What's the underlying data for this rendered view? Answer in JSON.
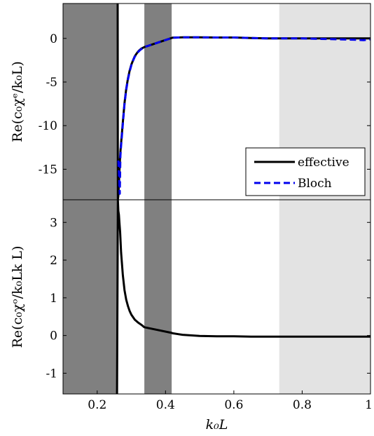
{
  "chart_data": [
    {
      "type": "line",
      "ylabel": "Re(c₀χᵉ/k₀L)",
      "xlim": [
        0.1,
        1.0
      ],
      "ylim": [
        -18.5,
        4
      ],
      "yticks": [
        0,
        -5,
        -10,
        -15
      ],
      "bands": [
        {
          "x0": 0.1,
          "x1": 0.26,
          "color": "#808080"
        },
        {
          "x0": 0.338,
          "x1": 0.418,
          "color": "#808080"
        },
        {
          "x0": 0.733,
          "x1": 1.0,
          "color": "#e3e3e3"
        }
      ],
      "legend": {
        "position": "bottom-right",
        "entries": [
          "effective",
          "Bloch"
        ]
      },
      "series": [
        {
          "name": "effective",
          "color": "#000000",
          "dash": "none",
          "x": [
            0.26,
            0.2605,
            0.262,
            0.264,
            0.266,
            0.268,
            0.27,
            0.275,
            0.28,
            0.285,
            0.29,
            0.295,
            0.3,
            0.305,
            0.31,
            0.315,
            0.32,
            0.325,
            0.33,
            0.338,
            0.418,
            0.42,
            0.45,
            0.5,
            0.55,
            0.6,
            0.65,
            0.7,
            0.75,
            0.8,
            0.85,
            0.9,
            0.95,
            1.0
          ],
          "y": [
            4,
            -18.5,
            -18,
            -16.2,
            -14.3,
            -13,
            -12,
            -9.6,
            -7.4,
            -5.8,
            -4.6,
            -3.7,
            -3.0,
            -2.5,
            -2.05,
            -1.75,
            -1.5,
            -1.3,
            -1.15,
            -1.0,
            0.05,
            0.08,
            0.12,
            0.12,
            0.1,
            0.1,
            0.05,
            0.0,
            0.0,
            0.0,
            0.0,
            0.0,
            0.0,
            0.0
          ]
        },
        {
          "name": "Bloch",
          "color": "#0000ee",
          "dash": "9 5",
          "x": [
            0.262,
            0.264,
            0.266,
            0.268,
            0.27,
            0.275,
            0.28,
            0.285,
            0.29,
            0.295,
            0.3,
            0.305,
            0.31,
            0.315,
            0.32,
            0.325,
            0.33,
            0.338,
            0.418,
            0.42,
            0.45,
            0.5,
            0.55,
            0.6,
            0.65,
            0.7,
            0.75,
            0.8,
            0.85,
            0.9,
            0.95,
            0.98,
            1.0
          ],
          "y": [
            -14,
            -15.6,
            -17.8,
            -13.5,
            -12.3,
            -9.8,
            -7.5,
            -5.9,
            -4.7,
            -3.8,
            -3.05,
            -2.55,
            -2.1,
            -1.8,
            -1.55,
            -1.35,
            -1.2,
            -1.0,
            0.05,
            0.08,
            0.12,
            0.12,
            0.1,
            0.1,
            0.05,
            0.0,
            0.0,
            0.0,
            -0.05,
            -0.1,
            -0.15,
            -0.2,
            -0.1
          ]
        }
      ]
    },
    {
      "type": "line",
      "xlabel": "k₀L",
      "ylabel": "Re(c₀χᵒ/k₀Lk L)",
      "xlim": [
        0.1,
        1.0
      ],
      "ylim": [
        -1.55,
        3.6
      ],
      "xticks": [
        0.2,
        0.4,
        0.6,
        0.8,
        1
      ],
      "xticklabels": [
        "0.2",
        "0.4",
        "0.6",
        "0.8",
        "1"
      ],
      "yticks": [
        3,
        2,
        1,
        0,
        -1
      ],
      "bands": [
        {
          "x0": 0.1,
          "x1": 0.26,
          "color": "#808080"
        },
        {
          "x0": 0.338,
          "x1": 0.418,
          "color": "#808080"
        },
        {
          "x0": 0.733,
          "x1": 1.0,
          "color": "#e3e3e3"
        }
      ],
      "series": [
        {
          "name": "effective",
          "color": "#000000",
          "dash": "none",
          "x": [
            0.258,
            0.2605,
            0.262,
            0.2635,
            0.265,
            0.267,
            0.27,
            0.275,
            0.28,
            0.285,
            0.29,
            0.295,
            0.3,
            0.31,
            0.32,
            0.33,
            0.338,
            0.418,
            0.42,
            0.45,
            0.5,
            0.55,
            0.6,
            0.65,
            0.7,
            0.75,
            0.8,
            0.85,
            0.9,
            0.95,
            1.0
          ],
          "y": [
            -1.55,
            3.6,
            3.3,
            3.2,
            3.0,
            2.75,
            2.2,
            1.6,
            1.2,
            0.95,
            0.78,
            0.65,
            0.55,
            0.42,
            0.34,
            0.28,
            0.22,
            0.07,
            0.06,
            0.02,
            -0.01,
            -0.02,
            -0.02,
            -0.03,
            -0.03,
            -0.03,
            -0.03,
            -0.03,
            -0.03,
            -0.03,
            -0.03
          ]
        }
      ]
    }
  ]
}
